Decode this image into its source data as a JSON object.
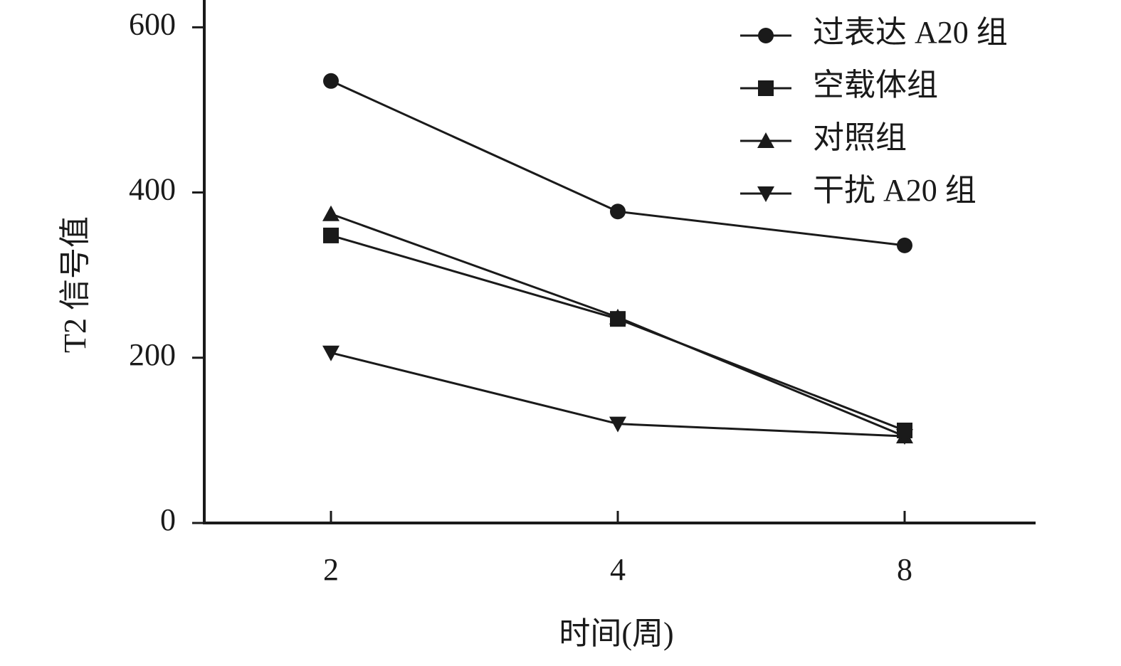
{
  "chart_data": {
    "type": "line",
    "x_label": "时间(周)",
    "y_label": "T2 信号值",
    "categories": [
      "2",
      "4",
      "8"
    ],
    "series": [
      {
        "name": "过表达 A20 组",
        "color": "#1a1a1a",
        "marker": "circle",
        "values": [
          535,
          377,
          336
        ]
      },
      {
        "name": "空载体组",
        "color": "#1a1a1a",
        "marker": "square",
        "values": [
          348,
          247,
          112
        ]
      },
      {
        "name": "对照组",
        "color": "#1a1a1a",
        "marker": "triangle-up",
        "values": [
          374,
          249,
          105
        ]
      },
      {
        "name": "干扰 A20 组",
        "color": "#1a1a1a",
        "marker": "triangle-down",
        "values": [
          206,
          120,
          105
        ]
      }
    ],
    "ylim": [
      0,
      633
    ],
    "yticks": [
      0,
      200,
      400,
      600
    ],
    "grid": false,
    "legend": "upper-right"
  }
}
